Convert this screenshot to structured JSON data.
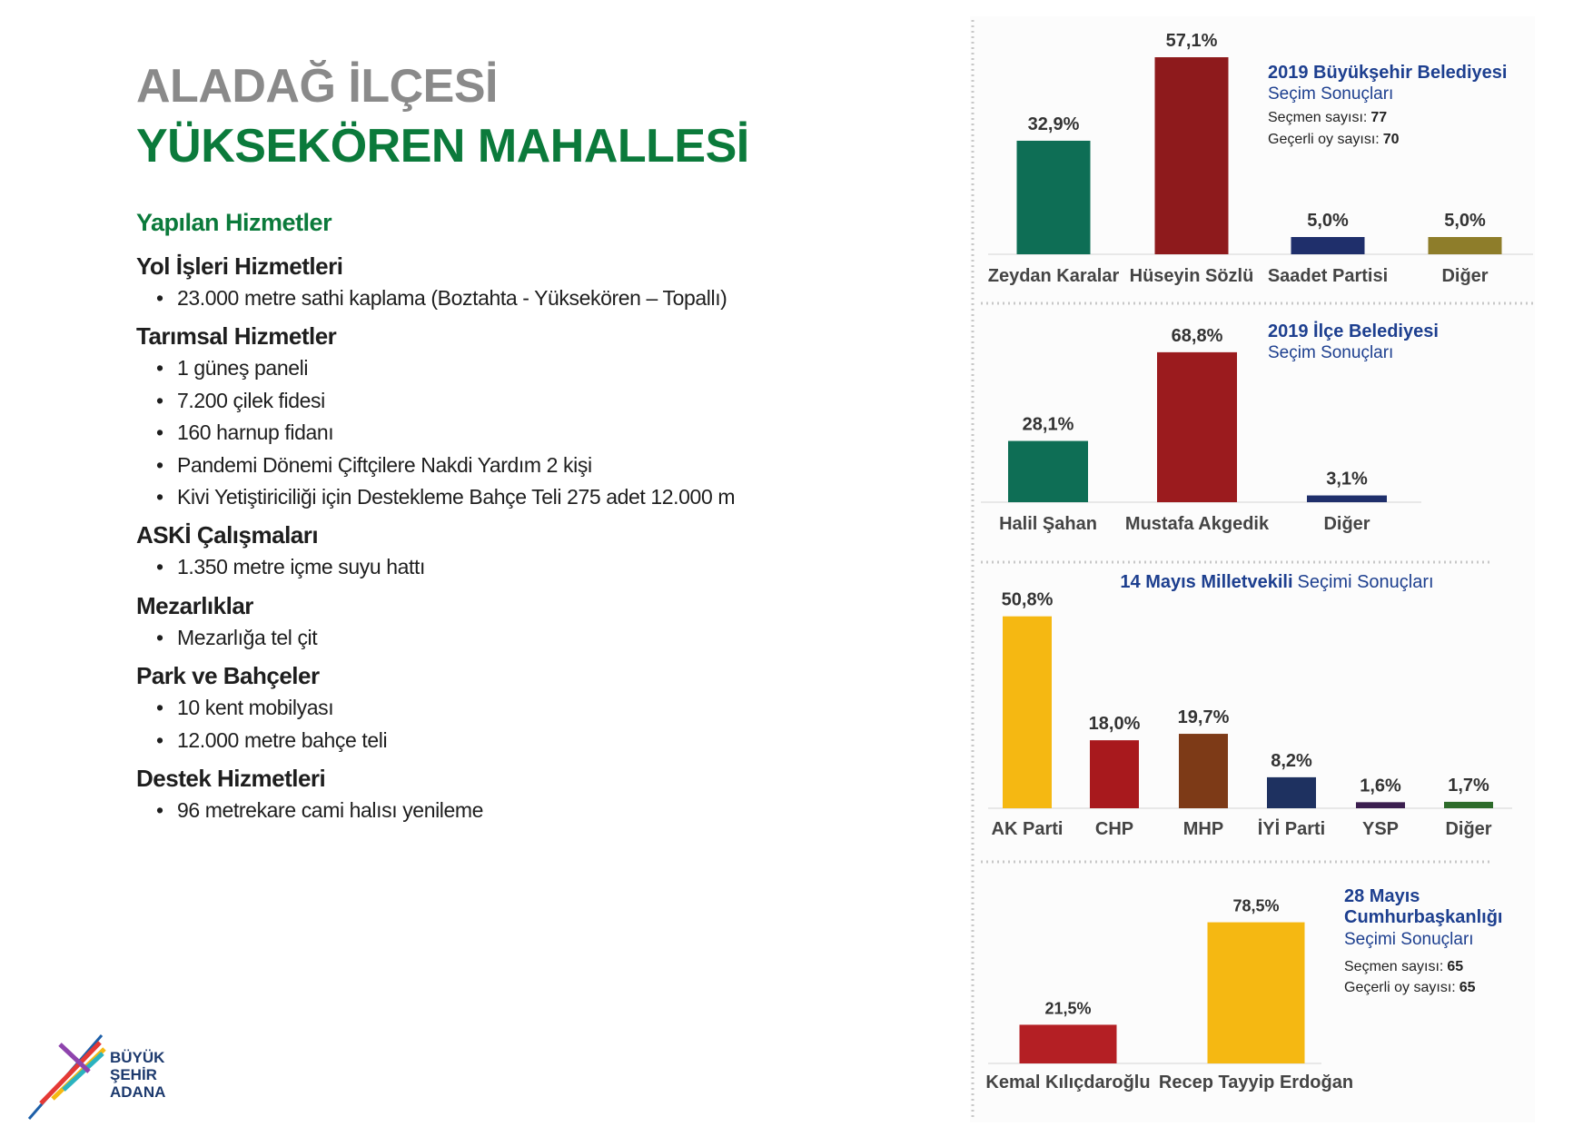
{
  "header": {
    "line1": "ALADAĞ İLÇESİ",
    "line2": "YÜKSEKÖREN MAHALLESİ"
  },
  "services": {
    "title": "Yapılan Hizmetler",
    "sections": [
      {
        "heading": "Yol İşleri Hizmetleri",
        "items": [
          "23.000 metre sathi kaplama (Boztahta - Yüksekören – Topallı)"
        ]
      },
      {
        "heading": "Tarımsal Hizmetler",
        "items": [
          "1 güneş paneli",
          "7.200 çilek fidesi",
          "160 harnup fidanı",
          "Pandemi Dönemi Çiftçilere Nakdi Yardım 2 kişi",
          "Kivi Yetiştiriciliği için Destekleme Bahçe Teli 275 adet 12.000 m"
        ]
      },
      {
        "heading": "ASKİ Çalışmaları",
        "items": [
          "1.350 metre içme suyu hattı"
        ]
      },
      {
        "heading": "Mezarlıklar",
        "items": [
          "Mezarlığa tel çit"
        ]
      },
      {
        "heading": "Park ve Bahçeler",
        "items": [
          "10 kent mobilyası",
          "12.000 metre bahçe teli"
        ]
      },
      {
        "heading": "Destek Hizmetleri",
        "items": [
          "96 metrekare cami halısı yenileme"
        ]
      }
    ]
  },
  "logo": {
    "lines": [
      "BÜYÜK",
      "ŞEHİR",
      "ADANA"
    ]
  },
  "chart_data": [
    {
      "type": "bar",
      "title": "2019 Büyükşehir Belediyesi",
      "subtitle": "Seçim Sonuçları",
      "info": [
        {
          "label": "Seçmen sayısı:",
          "value": "77"
        },
        {
          "label": "Geçerli oy sayısı:",
          "value": "70"
        }
      ],
      "categories": [
        "Zeydan Karalar",
        "Hüseyin Sözlü",
        "Saadet Partisi",
        "Diğer"
      ],
      "values": [
        32.9,
        57.1,
        5.0,
        5.0
      ],
      "value_labels": [
        "32,9%",
        "57,1%",
        "5,0%",
        "5,0%"
      ],
      "colors": [
        "#0e6e55",
        "#8e1a1c",
        "#1f2f6b",
        "#8e7d2a"
      ]
    },
    {
      "type": "bar",
      "title": "2019 İlçe Belediyesi",
      "subtitle": "Seçim Sonuçları",
      "categories": [
        "Halil Şahan",
        "Mustafa Akgedik",
        "Diğer"
      ],
      "values": [
        28.1,
        68.8,
        3.1
      ],
      "value_labels": [
        "28,1%",
        "68,8%",
        "3,1%"
      ],
      "colors": [
        "#0e6e55",
        "#9b1b1e",
        "#1f2f6b"
      ]
    },
    {
      "type": "bar",
      "title": "14 Mayıs Milletvekili",
      "subtitle": "Seçimi Sonuçları",
      "categories": [
        "AK Parti",
        "CHP",
        "MHP",
        "İYİ Parti",
        "YSP",
        "Diğer"
      ],
      "values": [
        50.8,
        18.0,
        19.7,
        8.2,
        1.6,
        1.7
      ],
      "value_labels": [
        "50,8%",
        "18,0%",
        "19,7%",
        "8,2%",
        "1,6%",
        "1,7%"
      ],
      "colors": [
        "#f5b812",
        "#a8191d",
        "#7d3a17",
        "#1e3160",
        "#3b1e4f",
        "#2d6b2a"
      ]
    },
    {
      "type": "bar",
      "title": "28 Mayıs",
      "title2": "Cumhurbaşkanlığı",
      "subtitle": "Seçimi Sonuçları",
      "info": [
        {
          "label": "Seçmen sayısı:",
          "value": "65"
        },
        {
          "label": "Geçerli oy sayısı:",
          "value": "65"
        }
      ],
      "categories": [
        "Kemal Kılıçdaroğlu",
        "Recep Tayyip Erdoğan"
      ],
      "values": [
        21.5,
        78.5
      ],
      "value_labels": [
        "21,5%",
        "78,5%"
      ],
      "colors": [
        "#b41f24",
        "#f5b812"
      ]
    }
  ]
}
